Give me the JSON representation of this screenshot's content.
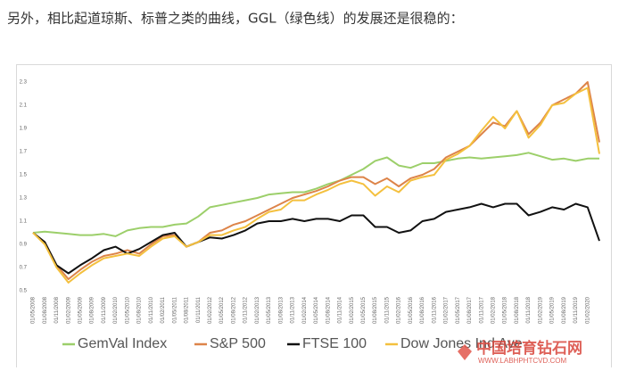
{
  "caption": "另外，相比起道琼斯、标普之类的曲线，GGL（绿色线）的发展还是很稳的：",
  "watermark": {
    "title": "中国培育钻石网",
    "url": "WWW.LABHPHTCVD.COM"
  },
  "chart_data": {
    "type": "line",
    "categories": [
      "01/05/2008",
      "01/08/2008",
      "01/11/2008",
      "01/02/2009",
      "01/05/2009",
      "01/08/2009",
      "01/11/2009",
      "01/02/2010",
      "01/05/2010",
      "01/08/2010",
      "01/11/2010",
      "01/02/2011",
      "01/05/2011",
      "01/08/2011",
      "01/11/2011",
      "01/02/2012",
      "01/05/2012",
      "01/08/2012",
      "01/11/2012",
      "01/02/2013",
      "01/05/2013",
      "01/08/2013",
      "01/11/2013",
      "01/02/2014",
      "01/05/2014",
      "01/08/2014",
      "01/11/2014",
      "01/02/2015",
      "01/05/2015",
      "01/08/2015",
      "01/11/2015",
      "01/02/2016",
      "01/05/2016",
      "01/08/2016",
      "01/11/2016",
      "01/02/2017",
      "01/05/2017",
      "01/08/2017",
      "01/11/2017",
      "01/02/2018",
      "01/05/2018",
      "01/08/2018",
      "01/11/2018",
      "01/02/2019",
      "01/05/2019",
      "01/08/2019",
      "01/11/2019",
      "01/02/2020",
      null
    ],
    "series": [
      {
        "name": "GemVal Index",
        "color": "#9ccf6a",
        "values": [
          1.0,
          1.01,
          1.0,
          0.99,
          0.98,
          0.98,
          0.99,
          0.97,
          1.02,
          1.04,
          1.05,
          1.05,
          1.07,
          1.08,
          1.14,
          1.22,
          1.24,
          1.26,
          1.28,
          1.3,
          1.33,
          1.34,
          1.35,
          1.35,
          1.38,
          1.42,
          1.45,
          1.5,
          1.55,
          1.62,
          1.65,
          1.58,
          1.56,
          1.6,
          1.6,
          1.62,
          1.64,
          1.65,
          1.64,
          1.65,
          1.66,
          1.67,
          1.69,
          1.66,
          1.63,
          1.64,
          1.62,
          1.64,
          1.64
        ]
      },
      {
        "name": "S&P 500",
        "color": "#dd8449",
        "values": [
          1.0,
          0.92,
          0.72,
          0.6,
          0.68,
          0.75,
          0.8,
          0.82,
          0.85,
          0.82,
          0.9,
          0.97,
          0.98,
          0.88,
          0.92,
          1.0,
          1.02,
          1.07,
          1.1,
          1.15,
          1.2,
          1.25,
          1.3,
          1.33,
          1.36,
          1.4,
          1.45,
          1.48,
          1.48,
          1.42,
          1.47,
          1.4,
          1.47,
          1.5,
          1.55,
          1.65,
          1.7,
          1.75,
          1.85,
          1.95,
          1.92,
          2.05,
          1.85,
          1.95,
          2.1,
          2.15,
          2.2,
          2.3,
          1.78
        ]
      },
      {
        "name": "FTSE 100",
        "color": "#111111",
        "values": [
          1.0,
          0.92,
          0.72,
          0.65,
          0.72,
          0.78,
          0.85,
          0.88,
          0.82,
          0.86,
          0.92,
          0.98,
          1.0,
          0.88,
          0.92,
          0.96,
          0.95,
          0.98,
          1.02,
          1.08,
          1.1,
          1.1,
          1.12,
          1.1,
          1.12,
          1.12,
          1.1,
          1.15,
          1.15,
          1.05,
          1.05,
          1.0,
          1.02,
          1.1,
          1.12,
          1.18,
          1.2,
          1.22,
          1.25,
          1.22,
          1.25,
          1.25,
          1.15,
          1.18,
          1.22,
          1.2,
          1.25,
          1.22,
          0.93
        ]
      },
      {
        "name": "Dow Jones Ind Ave",
        "color": "#f4c03e",
        "values": [
          1.0,
          0.9,
          0.7,
          0.57,
          0.65,
          0.72,
          0.78,
          0.8,
          0.82,
          0.8,
          0.88,
          0.95,
          0.97,
          0.88,
          0.92,
          0.98,
          0.98,
          1.02,
          1.05,
          1.12,
          1.18,
          1.2,
          1.28,
          1.28,
          1.33,
          1.37,
          1.42,
          1.45,
          1.42,
          1.32,
          1.4,
          1.35,
          1.45,
          1.48,
          1.5,
          1.63,
          1.68,
          1.75,
          1.88,
          2.0,
          1.9,
          2.05,
          1.82,
          1.93,
          2.1,
          2.12,
          2.2,
          2.25,
          1.68
        ]
      }
    ],
    "ylim": [
      0.5,
      2.3
    ],
    "yticks": [
      0.5,
      0.7,
      0.9,
      1.1,
      1.3,
      1.5,
      1.7,
      1.9,
      2.1,
      2.3
    ],
    "grid": false,
    "legend": "bottom"
  }
}
